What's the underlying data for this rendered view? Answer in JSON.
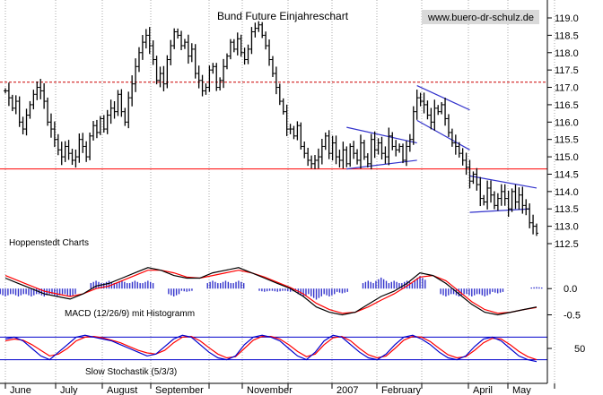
{
  "chart_data": [
    {
      "type": "candlestick",
      "title": "Bund Future Einjahreschart",
      "watermark": "www.buero-dr-schulz.de",
      "yticks": [
        112.5,
        113.0,
        113.5,
        114.0,
        114.5,
        115.0,
        115.5,
        116.0,
        116.5,
        117.0,
        117.5,
        118.0,
        118.5,
        119.0
      ],
      "ylim": [
        112.2,
        119.3
      ],
      "x_labels": [
        "June",
        "July",
        "August",
        "September",
        "November",
        "2007",
        "February",
        "April",
        "May"
      ],
      "horizontal_lines": [
        {
          "value": 114.65,
          "style": "solid",
          "color": "#ff0000"
        },
        {
          "value": 117.15,
          "style": "dashed",
          "color": "#cc0000"
        }
      ],
      "trendlines": [
        {
          "points": [
            [
              97,
              115.85
            ],
            [
              117,
              115.4
            ]
          ],
          "color": "#3333cc"
        },
        {
          "points": [
            [
              97,
              114.65
            ],
            [
              117,
              114.9
            ]
          ],
          "color": "#3333cc"
        },
        {
          "points": [
            [
              117,
              117.05
            ],
            [
              132,
              116.35
            ]
          ],
          "color": "#3333cc"
        },
        {
          "points": [
            [
              117,
              116.05
            ],
            [
              132,
              115.2
            ]
          ],
          "color": "#3333cc"
        },
        {
          "points": [
            [
              132,
              114.45
            ],
            [
              151,
              114.1
            ]
          ],
          "color": "#3333cc"
        },
        {
          "points": [
            [
              132,
              113.4
            ],
            [
              149,
              113.5
            ]
          ],
          "color": "#3333cc"
        }
      ],
      "close": [
        116.9,
        116.7,
        116.4,
        116.6,
        116.0,
        115.8,
        116.2,
        116.5,
        116.8,
        117.0,
        116.9,
        116.6,
        116.0,
        115.8,
        115.5,
        115.2,
        115.0,
        115.3,
        115.1,
        114.9,
        115.0,
        115.5,
        115.3,
        115.0,
        115.6,
        115.9,
        115.7,
        116.1,
        115.8,
        116.2,
        116.4,
        116.3,
        116.8,
        116.3,
        116.0,
        116.7,
        117.1,
        117.6,
        118.0,
        118.3,
        118.5,
        118.2,
        117.8,
        117.2,
        117.4,
        117.1,
        117.8,
        118.2,
        118.6,
        118.5,
        118.2,
        118.3,
        117.9,
        118.1,
        117.4,
        117.2,
        116.9,
        117.0,
        117.5,
        117.6,
        117.0,
        117.2,
        117.6,
        117.9,
        118.3,
        118.1,
        118.4,
        118.0,
        117.8,
        118.1,
        118.6,
        118.7,
        118.8,
        118.5,
        118.2,
        117.8,
        117.4,
        117.0,
        116.6,
        116.3,
        115.8,
        115.8,
        115.6,
        115.9,
        115.3,
        115.1,
        114.9,
        114.8,
        114.9,
        115.0,
        115.3,
        115.6,
        115.1,
        115.4,
        115.0,
        114.9,
        115.2,
        114.8,
        115.3,
        115.1,
        114.9,
        115.4,
        115.0,
        114.8,
        115.5,
        115.2,
        115.4,
        115.1,
        115.0,
        115.6,
        115.3,
        115.2,
        115.3,
        114.9,
        115.3,
        115.5,
        116.3,
        116.7,
        116.6,
        116.5,
        116.2,
        116.0,
        116.4,
        116.3,
        116.5,
        116.1,
        115.7,
        115.4,
        115.3,
        115.1,
        114.9,
        114.7,
        114.3,
        114.5,
        114.2,
        113.8,
        113.7,
        114.1,
        113.9,
        113.6,
        113.8,
        114.0,
        113.8,
        113.5,
        114.0,
        113.7,
        113.9,
        113.6,
        113.5,
        113.1,
        113.0,
        112.8
      ],
      "series": [
        {
          "name": "MACD (12/26/9) mit Histogramm",
          "yticks": [
            0.0,
            -0.5
          ],
          "ylim": [
            -0.85,
            0.55
          ],
          "macd": [
            0.2,
            0.1,
            0.0,
            -0.1,
            -0.15,
            -0.2,
            -0.1,
            0.05,
            0.1,
            0.2,
            0.3,
            0.4,
            0.35,
            0.25,
            0.2,
            0.2,
            0.3,
            0.35,
            0.4,
            0.3,
            0.2,
            0.1,
            0.0,
            -0.15,
            -0.35,
            -0.45,
            -0.5,
            -0.45,
            -0.3,
            -0.15,
            -0.05,
            0.1,
            0.3,
            0.25,
            0.1,
            -0.1,
            -0.3,
            -0.45,
            -0.5,
            -0.45,
            -0.4,
            -0.35
          ],
          "signal": [
            0.25,
            0.15,
            0.05,
            -0.05,
            -0.1,
            -0.15,
            -0.1,
            0.0,
            0.05,
            0.15,
            0.25,
            0.35,
            0.35,
            0.3,
            0.22,
            0.2,
            0.25,
            0.3,
            0.35,
            0.3,
            0.22,
            0.12,
            0.02,
            -0.1,
            -0.28,
            -0.4,
            -0.47,
            -0.45,
            -0.35,
            -0.22,
            -0.1,
            0.05,
            0.22,
            0.25,
            0.15,
            -0.05,
            -0.25,
            -0.4,
            -0.47,
            -0.45,
            -0.4,
            -0.36
          ],
          "histogram": [
            -0.05,
            -0.05,
            -0.05,
            -0.05,
            -0.05,
            -0.05,
            0.0,
            0.05,
            0.05,
            0.05,
            0.05,
            0.05,
            0.0,
            -0.05,
            -0.02,
            0.0,
            0.05,
            0.05,
            0.05,
            0.0,
            -0.02,
            -0.02,
            -0.02,
            -0.05,
            -0.07,
            -0.05,
            -0.03,
            0.0,
            0.05,
            0.07,
            0.05,
            0.05,
            0.08,
            0.0,
            -0.05,
            -0.05,
            -0.05,
            -0.05,
            -0.03,
            0.0,
            0.0,
            0.01
          ]
        },
        {
          "name": "Slow Stochastik (5/3/3)",
          "yticks": [
            50
          ],
          "ylim": [
            0,
            100
          ],
          "levels": [
            80,
            20
          ],
          "k": [
            75,
            80,
            70,
            50,
            30,
            20,
            40,
            60,
            80,
            85,
            80,
            75,
            70,
            60,
            50,
            40,
            30,
            35,
            55,
            75,
            85,
            80,
            60,
            40,
            25,
            20,
            30,
            60,
            80,
            85,
            80,
            70,
            50,
            30,
            20,
            40,
            70,
            85,
            80,
            60,
            40,
            25,
            20,
            35,
            60,
            80,
            85,
            75,
            60,
            40,
            25,
            20,
            30,
            55,
            75,
            80,
            70,
            50,
            30,
            20,
            15
          ],
          "d": [
            70,
            75,
            72,
            60,
            45,
            30,
            35,
            50,
            70,
            80,
            82,
            78,
            72,
            65,
            55,
            45,
            38,
            35,
            45,
            65,
            80,
            82,
            70,
            52,
            35,
            25,
            28,
            50,
            72,
            82,
            82,
            75,
            60,
            42,
            28,
            35,
            60,
            78,
            82,
            70,
            50,
            33,
            25,
            30,
            50,
            72,
            82,
            80,
            68,
            50,
            33,
            25,
            28,
            45,
            65,
            77,
            75,
            60,
            42,
            28,
            20
          ]
        }
      ]
    }
  ],
  "annotations": [
    "Hoppenstedt Charts"
  ]
}
